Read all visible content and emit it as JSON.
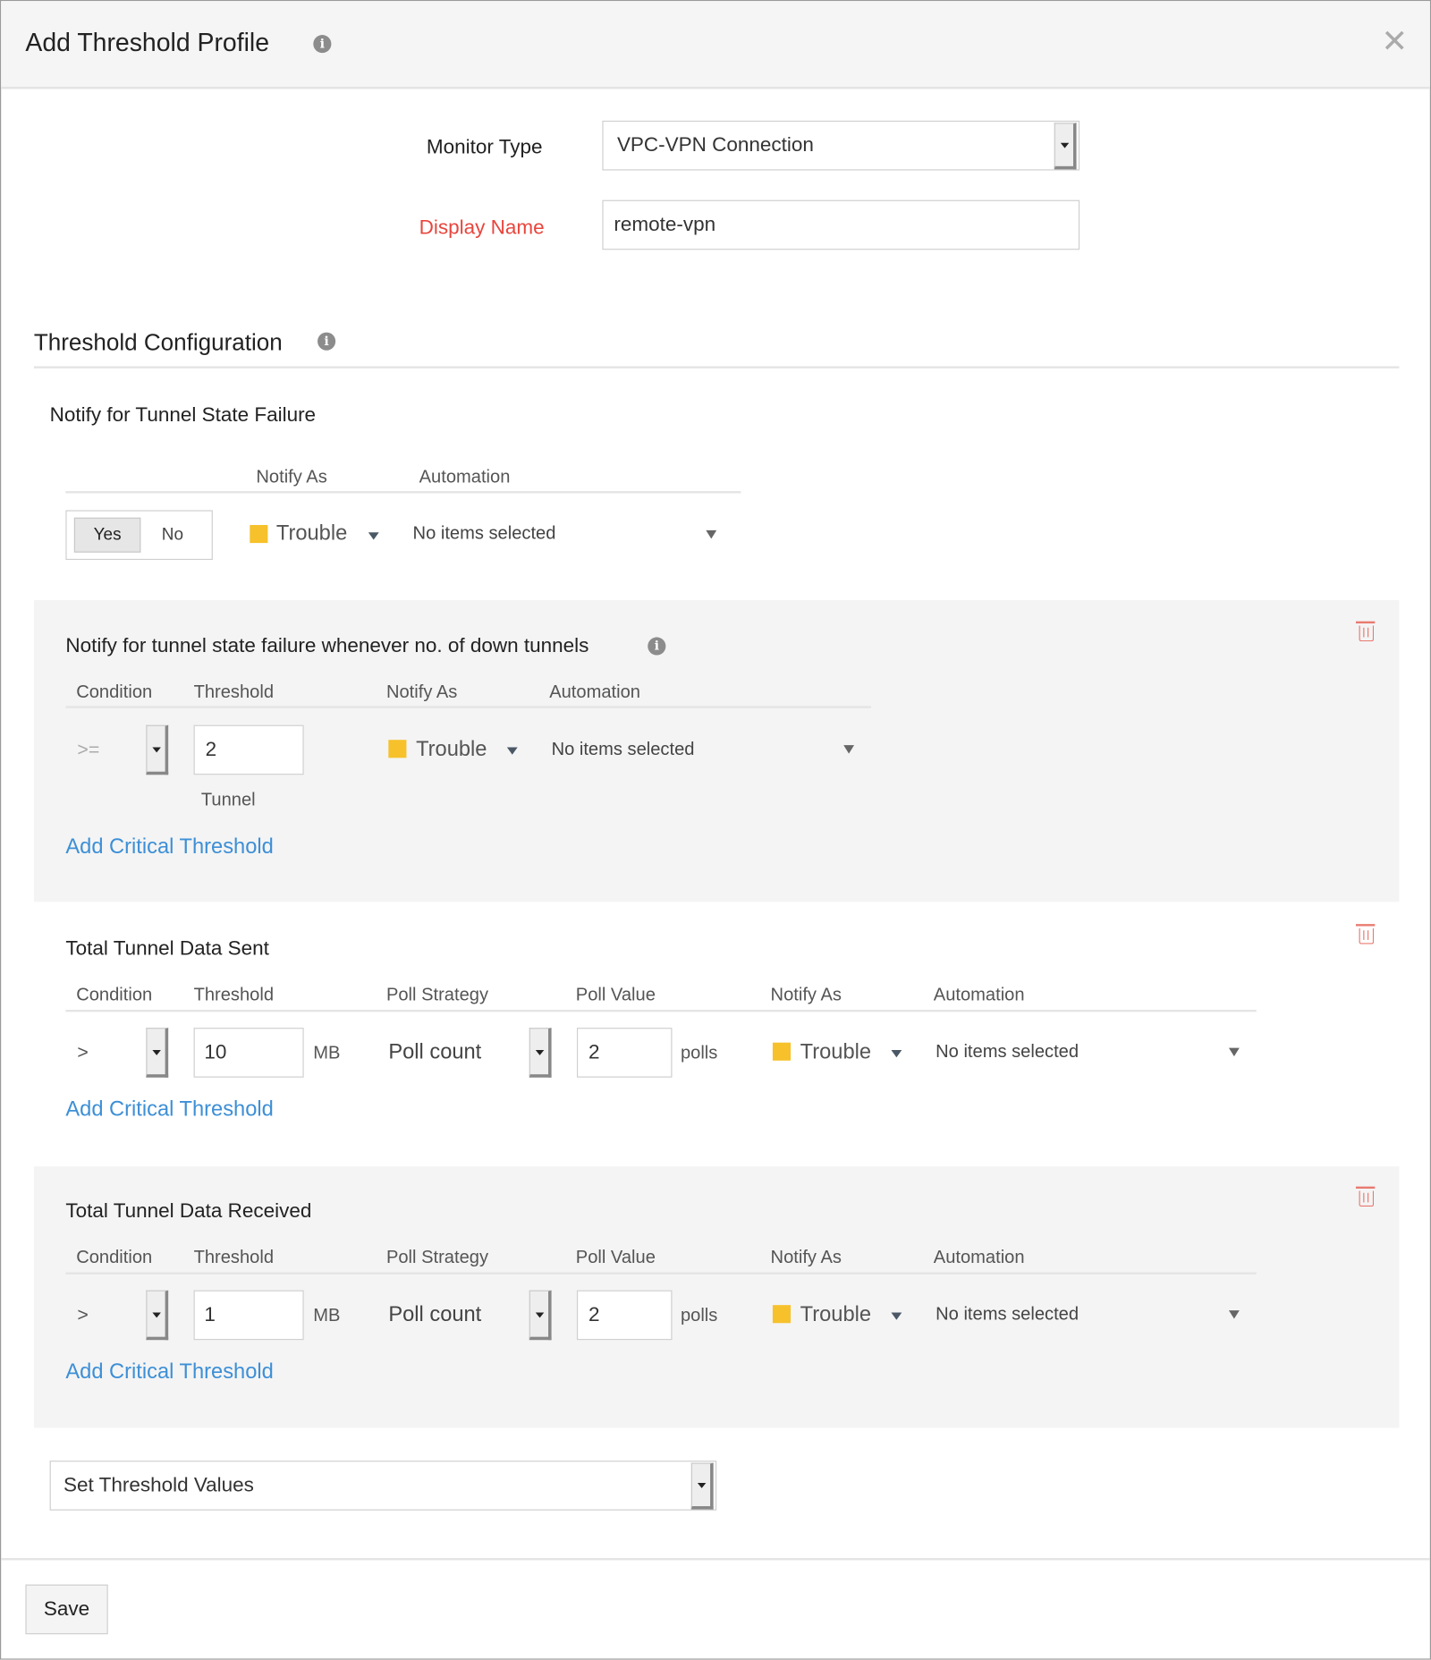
{
  "dialog": {
    "title": "Add Threshold Profile",
    "info_icon": "info-icon",
    "close_icon": "close-icon"
  },
  "form": {
    "monitor_type_label": "Monitor Type",
    "monitor_type_value": "VPC-VPN Connection",
    "display_name_label": "Display Name",
    "display_name_value": "remote-vpn",
    "required_color": "#e8453c"
  },
  "threshold_config": {
    "title": "Threshold Configuration"
  },
  "tunnel_state": {
    "title": "Notify for Tunnel State Failure",
    "headers": {
      "notify_as": "Notify As",
      "automation": "Automation"
    },
    "toggle": {
      "yes": "Yes",
      "no": "No",
      "selected": "Yes"
    },
    "notify_as": "Trouble",
    "automation": "No items selected"
  },
  "sections": [
    {
      "title": "Notify for tunnel state failure whenever no. of down tunnels",
      "headers": {
        "condition": "Condition",
        "threshold": "Threshold",
        "notify_as": "Notify As",
        "automation": "Automation"
      },
      "condition": ">=",
      "threshold": "2",
      "unit": "Tunnel",
      "notify_as": "Trouble",
      "automation": "No items selected",
      "add_critical": "Add Critical Threshold"
    },
    {
      "title": "Total Tunnel Data Sent",
      "headers": {
        "condition": "Condition",
        "threshold": "Threshold",
        "poll_strategy": "Poll Strategy",
        "poll_value": "Poll Value",
        "notify_as": "Notify As",
        "automation": "Automation"
      },
      "condition": ">",
      "threshold": "10",
      "unit": "MB",
      "poll_strategy": "Poll count",
      "poll_value": "2",
      "poll_unit": "polls",
      "notify_as": "Trouble",
      "automation": "No items selected",
      "add_critical": "Add Critical Threshold"
    },
    {
      "title": "Total Tunnel Data Received",
      "headers": {
        "condition": "Condition",
        "threshold": "Threshold",
        "poll_strategy": "Poll Strategy",
        "poll_value": "Poll Value",
        "notify_as": "Notify As",
        "automation": "Automation"
      },
      "condition": ">",
      "threshold": "1",
      "unit": "MB",
      "poll_strategy": "Poll count",
      "poll_value": "2",
      "poll_unit": "polls",
      "notify_as": "Trouble",
      "automation": "No items selected",
      "add_critical": "Add Critical Threshold"
    }
  ],
  "set_threshold": {
    "value": "Set Threshold Values"
  },
  "footer": {
    "save": "Save"
  },
  "colors": {
    "trouble": "#f6c12b",
    "link": "#3d8fd6",
    "delete": "#e87a70"
  }
}
